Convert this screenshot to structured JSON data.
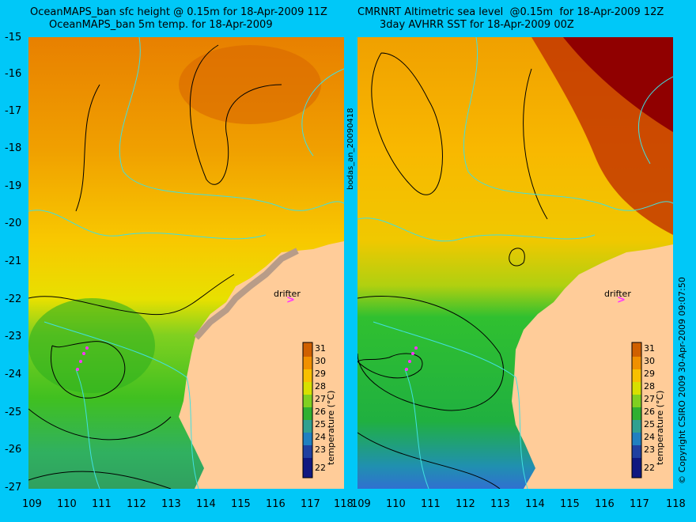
{
  "left": {
    "title1": "OceanMAPS_ban sfc height @ 0.15m for 18-Apr-2009 11Z",
    "title2": "OceanMAPS_ban 5m temp. for 18-Apr-2009"
  },
  "right": {
    "title1": "CMRNRT Altimetric sea level  @0.15m  for 18-Apr-2009 12Z",
    "title2": "3day AVHRR SST for 18-Apr-2009 00Z"
  },
  "y_ticks": [
    "-15",
    "-16",
    "-17",
    "-18",
    "-19",
    "-20",
    "-21",
    "-22",
    "-23",
    "-24",
    "-25",
    "-26",
    "-27"
  ],
  "x_ticks": [
    "109",
    "110",
    "111",
    "112",
    "113",
    "114",
    "115",
    "116",
    "117",
    "118"
  ],
  "cbar_ticks": [
    "31",
    "30",
    "29",
    "28",
    "27",
    "26",
    "25",
    "24",
    "23",
    "22"
  ],
  "cbar_label": "temperature (°C)",
  "drifter_label": "drifter",
  "marker_glyph": ">",
  "side_label": "bodas_an_20090418",
  "copyright": "© Copyright CSIRO 2009   30-Apr-2009 09:07:50",
  "colors": {
    "background": "#00c8f8",
    "land": "#ffcc99",
    "contour": "#000000",
    "isobath": "#40e0e0",
    "drifter": "#ff33ff"
  }
}
